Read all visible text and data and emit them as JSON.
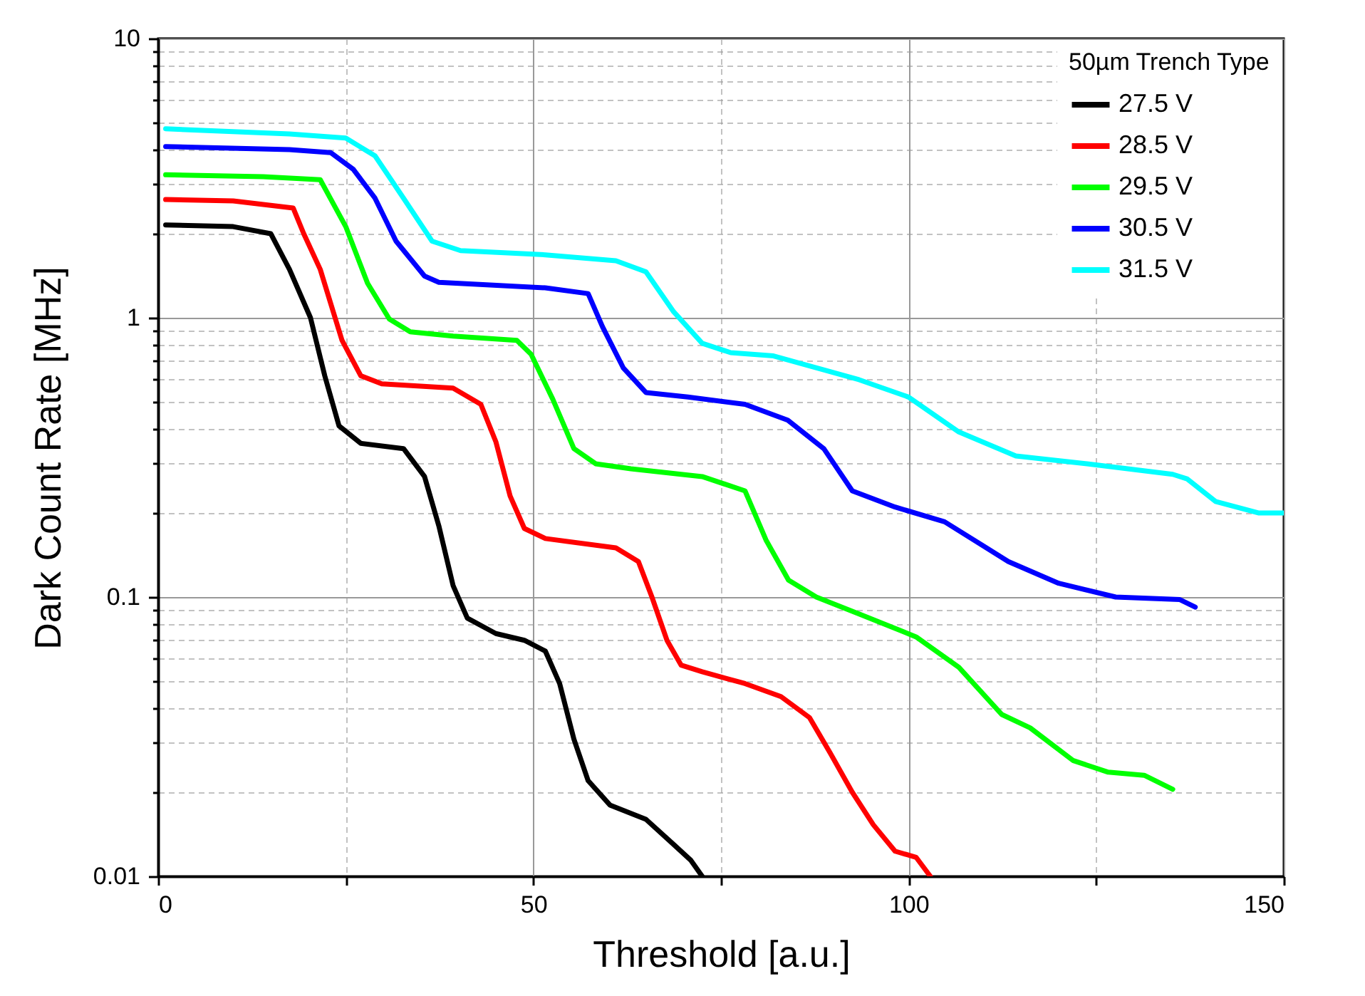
{
  "chart_data": {
    "type": "line",
    "xlabel": "Threshold [a.u.]",
    "ylabel": "Dark Count Rate [MHz]",
    "legend_title": "50µm Trench Type",
    "legend": "top right",
    "grid": true,
    "log": "y",
    "line_style": "solid",
    "marker": "none",
    "xlim": [
      0,
      150
    ],
    "ylim": [
      0.01,
      10
    ],
    "xticks": [
      0,
      {
        "value": 25,
        "label": null
      },
      50,
      {
        "value": 75,
        "label": null
      },
      100,
      {
        "value": 125,
        "label": null
      },
      150
    ],
    "yticks": [
      0.01,
      {
        "value": 0.02,
        "label": null
      },
      {
        "value": 0.03,
        "label": null
      },
      {
        "value": 0.04,
        "label": null
      },
      {
        "value": 0.05,
        "label": null
      },
      {
        "value": 0.06,
        "label": null
      },
      {
        "value": 0.07,
        "label": null
      },
      {
        "value": 0.08,
        "label": null
      },
      {
        "value": 0.09,
        "label": null
      },
      0.1,
      {
        "value": 0.2,
        "label": null
      },
      {
        "value": 0.3,
        "label": null
      },
      {
        "value": 0.4,
        "label": null
      },
      {
        "value": 0.5,
        "label": null
      },
      {
        "value": 0.6,
        "label": null
      },
      {
        "value": 0.7,
        "label": null
      },
      {
        "value": 0.8,
        "label": null
      },
      {
        "value": 0.9,
        "label": null
      },
      1,
      {
        "value": 2,
        "label": null
      },
      {
        "value": 3,
        "label": null
      },
      {
        "value": 4,
        "label": null
      },
      {
        "value": 5,
        "label": null
      },
      {
        "value": 6,
        "label": null
      },
      {
        "value": 7,
        "label": null
      },
      {
        "value": 8,
        "label": null
      },
      {
        "value": 9,
        "label": null
      },
      10
    ],
    "series": [
      {
        "name": "27.5 V",
        "color": "#000000",
        "x": [
          1,
          10,
          15,
          17.5,
          20.3,
          22.2,
          24.1,
          27,
          32.7,
          35.5,
          37.4,
          39.3,
          41.2,
          45,
          48.8,
          51.6,
          53.5,
          55.4,
          57.3,
          60.2,
          65,
          68.7,
          71,
          72.5
        ],
        "values": [
          2.15,
          2.12,
          2.0,
          1.49,
          1.0,
          0.62,
          0.41,
          0.355,
          0.34,
          0.27,
          0.18,
          0.11,
          0.084,
          0.074,
          0.07,
          0.064,
          0.049,
          0.031,
          0.022,
          0.018,
          0.016,
          0.013,
          0.0114,
          0.01
        ]
      },
      {
        "name": "28.5 V",
        "color": "#ff0000",
        "x": [
          1,
          10,
          18,
          19.4,
          21.6,
          24.5,
          27,
          29.8,
          39.3,
          43,
          45,
          46.9,
          48.8,
          51.6,
          61,
          64,
          65.8,
          67.8,
          69.7,
          72.5,
          78.2,
          83,
          86.8,
          89.6,
          92.5,
          95.3,
          98.2,
          101,
          102.9
        ],
        "values": [
          2.65,
          2.62,
          2.47,
          2.0,
          1.49,
          0.83,
          0.62,
          0.58,
          0.56,
          0.49,
          0.36,
          0.23,
          0.176,
          0.162,
          0.15,
          0.134,
          0.1,
          0.07,
          0.057,
          0.054,
          0.049,
          0.044,
          0.037,
          0.0275,
          0.02,
          0.0153,
          0.0123,
          0.0117,
          0.01
        ]
      },
      {
        "name": "29.5 V",
        "color": "#00ff00",
        "x": [
          1,
          14,
          21.6,
          25,
          27.9,
          30.8,
          33.6,
          39.3,
          47.8,
          49.7,
          52.6,
          55.4,
          58.3,
          63,
          72.5,
          78.2,
          81,
          84,
          87.7,
          93.4,
          101,
          106.7,
          112.4,
          116.2,
          121.9,
          126.6,
          131.4,
          135.2
        ],
        "values": [
          3.25,
          3.2,
          3.12,
          2.12,
          1.33,
          0.99,
          0.89,
          0.86,
          0.83,
          0.74,
          0.51,
          0.34,
          0.3,
          0.288,
          0.27,
          0.24,
          0.16,
          0.115,
          0.1,
          0.087,
          0.072,
          0.056,
          0.038,
          0.034,
          0.026,
          0.0236,
          0.023,
          0.0205
        ]
      },
      {
        "name": "30.5 V",
        "color": "#0000ff",
        "x": [
          1,
          17.5,
          23,
          26,
          28.9,
          31.7,
          35.5,
          37.4,
          51.6,
          57.3,
          59.2,
          62,
          65,
          70.6,
          78.2,
          83.9,
          88.7,
          92.5,
          98.2,
          104.8,
          113.3,
          120,
          127.6,
          136.1,
          138.2
        ],
        "values": [
          4.1,
          4.0,
          3.9,
          3.4,
          2.68,
          1.88,
          1.41,
          1.34,
          1.28,
          1.22,
          0.93,
          0.66,
          0.54,
          0.52,
          0.49,
          0.43,
          0.34,
          0.24,
          0.21,
          0.186,
          0.134,
          0.112,
          0.1,
          0.098,
          0.092
        ]
      },
      {
        "name": "31.5 V",
        "color": "#00ffff",
        "x": [
          1,
          17.5,
          25,
          28.9,
          32.7,
          36.5,
          40.3,
          51.6,
          61,
          65,
          68.7,
          72.5,
          76.3,
          82,
          93.4,
          100,
          106.7,
          114.3,
          123.8,
          135.2,
          137.1,
          140.9,
          146.6,
          150
        ],
        "values": [
          4.75,
          4.55,
          4.4,
          3.8,
          2.68,
          1.88,
          1.74,
          1.68,
          1.6,
          1.46,
          1.05,
          0.81,
          0.75,
          0.73,
          0.6,
          0.52,
          0.39,
          0.32,
          0.3,
          0.275,
          0.265,
          0.22,
          0.2,
          0.2
        ]
      }
    ]
  }
}
